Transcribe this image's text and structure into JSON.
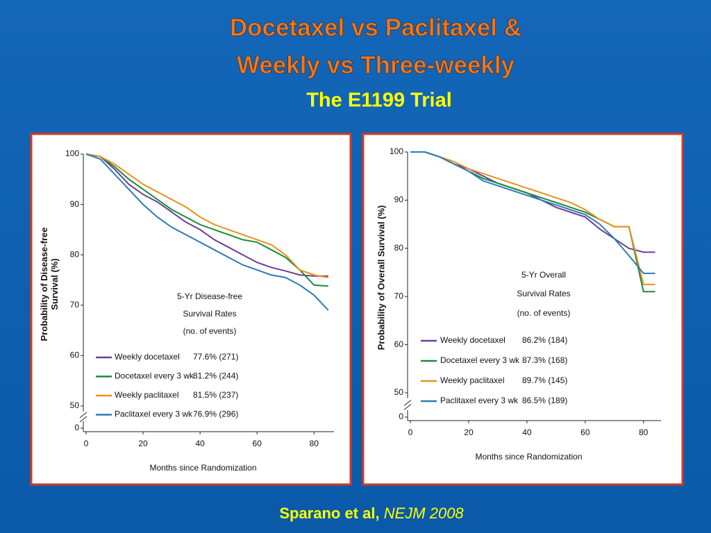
{
  "slide": {
    "title": [
      "Docetaxel vs Paclitaxel &",
      "Weekly vs Three-weekly"
    ],
    "subtitle": "The E1199 Trial",
    "citation": {
      "authors": "Sparano et al,",
      "journal": "NEJM 2008"
    }
  },
  "chart_data": [
    {
      "type": "line",
      "x": [
        0,
        5,
        10,
        15,
        20,
        25,
        30,
        35,
        40,
        45,
        50,
        55,
        60,
        65,
        70,
        75,
        80,
        85
      ],
      "series": [
        {
          "name": "Weekly docetaxel",
          "summary": "77.6% (271)",
          "color": "#6a3d9a",
          "values": [
            100,
            99.5,
            97,
            94,
            92,
            90.5,
            88.5,
            86.5,
            85,
            83,
            81.5,
            80,
            78.5,
            77.5,
            76.8,
            76,
            75.8,
            75.8
          ]
        },
        {
          "name": "Docetaxel every 3 wk",
          "summary": "81.2% (244)",
          "color": "#1a8a3a",
          "values": [
            100,
            99.5,
            97.5,
            95,
            93,
            91,
            89,
            87.5,
            86,
            85,
            84,
            83,
            82.5,
            81,
            79.5,
            77,
            74,
            73.8
          ]
        },
        {
          "name": "Weekly paclitaxel",
          "summary": "81.5% (237)",
          "color": "#e8901a",
          "values": [
            100,
            99.5,
            98,
            96,
            94,
            92.5,
            91,
            89.5,
            87.5,
            86,
            85,
            84,
            83,
            82,
            80,
            77,
            76,
            75.5
          ]
        },
        {
          "name": "Paclitaxel every 3 wk",
          "summary": "76.9% (296)",
          "color": "#2a7ab8",
          "values": [
            100,
            99,
            96,
            93,
            90,
            87.5,
            85.5,
            84,
            82.5,
            81,
            79.5,
            78,
            77,
            76,
            75.5,
            74,
            72,
            69
          ]
        }
      ],
      "xlim": [
        0,
        87
      ],
      "xticks": [
        0,
        20,
        40,
        60,
        80
      ],
      "ylim": [
        0,
        100
      ],
      "yticks": [
        0,
        50,
        60,
        70,
        80,
        90,
        100
      ],
      "y_break": [
        0,
        50
      ],
      "xlabel": "Months since Randomization",
      "ylabel": [
        "Probability of Disease-free",
        "Survival (%)"
      ],
      "legend_title": [
        "5-Yr Disease-free",
        "Survival Rates",
        "(no. of events)"
      ]
    },
    {
      "type": "line",
      "x": [
        0,
        5,
        10,
        15,
        20,
        25,
        30,
        35,
        40,
        45,
        50,
        55,
        60,
        65,
        70,
        75,
        80,
        84
      ],
      "series": [
        {
          "name": "Weekly docetaxel",
          "summary": "86.2% (184)",
          "color": "#6a3d9a",
          "values": [
            100,
            100,
            99,
            97.5,
            96.5,
            95,
            93.5,
            92.5,
            91.5,
            90,
            88.5,
            87.5,
            86.5,
            84,
            82,
            80,
            79.2,
            79.2
          ]
        },
        {
          "name": "Docetaxel every 3 wk",
          "summary": "87.3% (168)",
          "color": "#1a8a3a",
          "values": [
            100,
            100,
            99,
            97.5,
            96,
            94.5,
            93.5,
            92.5,
            91.5,
            90.5,
            89.5,
            88.5,
            87.5,
            86,
            84.5,
            84.5,
            71,
            71
          ]
        },
        {
          "name": "Weekly paclitaxel",
          "summary": "89.7% (145)",
          "color": "#e8901a",
          "values": [
            100,
            100,
            99,
            98,
            96.5,
            95.5,
            94.5,
            93.5,
            92.5,
            91.5,
            90.5,
            89.5,
            88,
            86,
            84.5,
            84.5,
            72.5,
            72.5
          ]
        },
        {
          "name": "Paclitaxel every 3 wk",
          "summary": "86.5% (189)",
          "color": "#2a7ab8",
          "values": [
            100,
            100,
            99,
            97.5,
            96,
            94,
            93,
            92,
            91,
            90,
            89,
            88,
            87,
            85,
            82,
            78.5,
            74.8,
            74.8
          ]
        }
      ],
      "xlim": [
        0,
        86
      ],
      "xticks": [
        0,
        20,
        40,
        60,
        80
      ],
      "ylim": [
        0,
        100
      ],
      "yticks": [
        0,
        50,
        60,
        70,
        80,
        90,
        100
      ],
      "y_break": [
        0,
        50
      ],
      "xlabel": "Months since Randomization",
      "ylabel": [
        "Probability of Overall Survival (%)"
      ],
      "legend_title": [
        "5-Yr Overall",
        "Survival Rates",
        "(no. of events)"
      ]
    }
  ]
}
